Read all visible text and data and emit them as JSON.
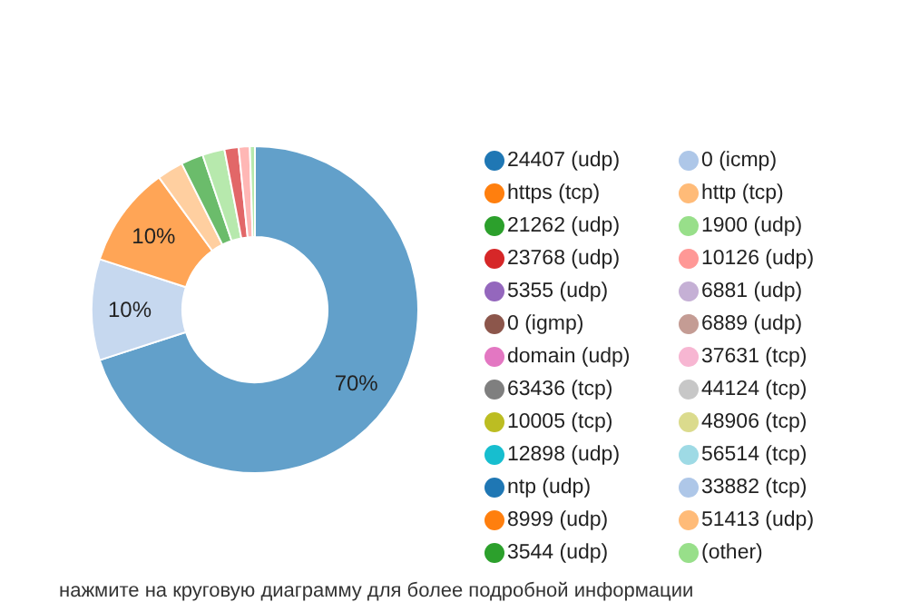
{
  "chart_data": {
    "type": "donut",
    "categories": [
      "24407 (udp)",
      "0 (icmp)",
      "https (tcp)",
      "http (tcp)",
      "21262 (udp)",
      "1900 (udp)",
      "23768 (udp)",
      "10126 (udp)",
      "5355 (udp)",
      "6881 (udp)",
      "0 (igmp)",
      "6889 (udp)",
      "domain (udp)",
      "37631 (tcp)",
      "63436 (tcp)",
      "44124 (tcp)",
      "10005 (tcp)",
      "48906 (tcp)",
      "12898 (udp)",
      "56514 (tcp)",
      "ntp (udp)",
      "33882 (tcp)",
      "8999 (udp)",
      "51413 (udp)",
      "3544 (udp)",
      "(other)"
    ],
    "values": [
      70,
      10,
      10,
      2.6,
      2.2,
      2.2,
      1.4,
      1.1,
      null,
      null,
      null,
      null,
      null,
      null,
      null,
      null,
      null,
      null,
      null,
      null,
      null,
      null,
      null,
      null,
      null,
      0.5
    ],
    "colors": [
      "#1f77b4",
      "#aec7e8",
      "#ff7f0e",
      "#ffbb78",
      "#2ca02c",
      "#98df8a",
      "#d62728",
      "#ff9896",
      "#9467bd",
      "#c5b0d5",
      "#8c564b",
      "#c49c94",
      "#e377c2",
      "#f7b6d2",
      "#7f7f7f",
      "#c7c7c7",
      "#bcbd22",
      "#dbdb8d",
      "#17becf",
      "#9edae5",
      "#1f77b4",
      "#aec7e8",
      "#ff7f0e",
      "#ffbb78",
      "#2ca02c",
      "#98df8a"
    ],
    "value_labels": [
      "70%",
      "10%",
      "10%",
      null,
      null,
      null,
      null,
      null,
      null,
      null,
      null,
      null,
      null,
      null,
      null,
      null,
      null,
      null,
      null,
      null,
      null,
      null,
      null,
      null,
      null,
      null
    ],
    "legend": "right",
    "annotations": [
      "нажмите на круговую диаграмму для более подробной информации"
    ]
  }
}
